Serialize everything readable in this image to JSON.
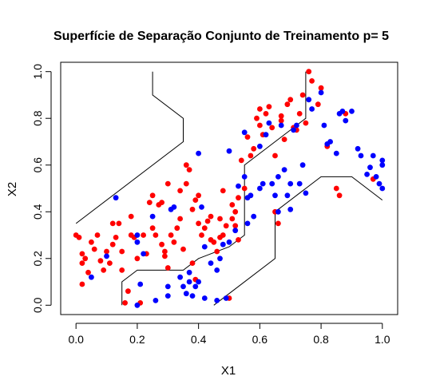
{
  "chart_data": {
    "type": "scatter",
    "title": "Superfície de Separação Conjunto de Treinamento p= 5",
    "xlabel": "X1",
    "ylabel": "X2",
    "xlim": [
      -0.05,
      1.05
    ],
    "ylim": [
      -0.04,
      1.04
    ],
    "x_ticks": [
      "0.0",
      "0.2",
      "0.4",
      "0.6",
      "0.8",
      "1.0"
    ],
    "y_ticks": [
      "0.0",
      "0.2",
      "0.4",
      "0.6",
      "0.8",
      "1.0"
    ],
    "grid": false,
    "legend": "none",
    "series": [
      {
        "color": "#ff0000",
        "points": [
          [
            0.0,
            0.3
          ],
          [
            0.01,
            0.29
          ],
          [
            0.02,
            0.22
          ],
          [
            0.02,
            0.18
          ],
          [
            0.02,
            0.09
          ],
          [
            0.03,
            0.2
          ],
          [
            0.04,
            0.14
          ],
          [
            0.05,
            0.27
          ],
          [
            0.06,
            0.24
          ],
          [
            0.07,
            0.3
          ],
          [
            0.08,
            0.19
          ],
          [
            0.09,
            0.15
          ],
          [
            0.1,
            0.23
          ],
          [
            0.11,
            0.18
          ],
          [
            0.12,
            0.35
          ],
          [
            0.12,
            0.26
          ],
          [
            0.13,
            0.29
          ],
          [
            0.14,
            0.35
          ],
          [
            0.15,
            0.23
          ],
          [
            0.15,
            0.15
          ],
          [
            0.16,
            0.01
          ],
          [
            0.17,
            0.06
          ],
          [
            0.18,
            0.38
          ],
          [
            0.18,
            0.3
          ],
          [
            0.19,
            0.29
          ],
          [
            0.2,
            0.2
          ],
          [
            0.21,
            0.01
          ],
          [
            0.22,
            0.3
          ],
          [
            0.23,
            0.22
          ],
          [
            0.24,
            0.44
          ],
          [
            0.25,
            0.47
          ],
          [
            0.25,
            0.33
          ],
          [
            0.26,
            0.3
          ],
          [
            0.27,
            0.43
          ],
          [
            0.28,
            0.26
          ],
          [
            0.28,
            0.44
          ],
          [
            0.29,
            0.21
          ],
          [
            0.29,
            0.23
          ],
          [
            0.3,
            0.16
          ],
          [
            0.3,
            0.52
          ],
          [
            0.31,
            0.3
          ],
          [
            0.32,
            0.27
          ],
          [
            0.33,
            0.33
          ],
          [
            0.34,
            0.49
          ],
          [
            0.34,
            0.37
          ],
          [
            0.35,
            0.24
          ],
          [
            0.36,
            0.6
          ],
          [
            0.36,
            0.52
          ],
          [
            0.37,
            0.58
          ],
          [
            0.38,
            0.41
          ],
          [
            0.38,
            0.18
          ],
          [
            0.39,
            0.11
          ],
          [
            0.39,
            0.45
          ],
          [
            0.4,
            0.47
          ],
          [
            0.4,
            0.35
          ],
          [
            0.41,
            0.3
          ],
          [
            0.42,
            0.33
          ],
          [
            0.43,
            0.36
          ],
          [
            0.44,
            0.38
          ],
          [
            0.44,
            0.28
          ],
          [
            0.45,
            0.27
          ],
          [
            0.46,
            0.23
          ],
          [
            0.47,
            0.29
          ],
          [
            0.47,
            0.37
          ],
          [
            0.48,
            0.49
          ],
          [
            0.48,
            0.3
          ],
          [
            0.49,
            0.34
          ],
          [
            0.5,
            0.03
          ],
          [
            0.51,
            0.43
          ],
          [
            0.51,
            0.37
          ],
          [
            0.52,
            0.4
          ],
          [
            0.52,
            0.34
          ],
          [
            0.53,
            0.46
          ],
          [
            0.53,
            0.28
          ],
          [
            0.54,
            0.62
          ],
          [
            0.55,
            0.5
          ],
          [
            0.56,
            0.72
          ],
          [
            0.57,
            0.64
          ],
          [
            0.58,
            0.67
          ],
          [
            0.59,
            0.8
          ],
          [
            0.6,
            0.77
          ],
          [
            0.6,
            0.84
          ],
          [
            0.61,
            0.73
          ],
          [
            0.62,
            0.82
          ],
          [
            0.63,
            0.85
          ],
          [
            0.64,
            0.76
          ],
          [
            0.65,
            0.4
          ],
          [
            0.65,
            0.64
          ],
          [
            0.66,
            0.35
          ],
          [
            0.67,
            0.79
          ],
          [
            0.67,
            0.81
          ],
          [
            0.68,
            0.71
          ],
          [
            0.69,
            0.86
          ],
          [
            0.7,
            0.88
          ],
          [
            0.71,
            0.76
          ],
          [
            0.72,
            0.75
          ],
          [
            0.73,
            0.82
          ],
          [
            0.74,
            0.9
          ],
          [
            0.75,
            0.78
          ],
          [
            0.76,
            1.0
          ],
          [
            0.77,
            0.96
          ],
          [
            0.79,
            0.86
          ],
          [
            0.8,
            0.93
          ],
          [
            0.82,
            0.68
          ],
          [
            0.85,
            0.5
          ],
          [
            0.86,
            0.47
          ],
          [
            0.88,
            0.82
          ],
          [
            0.97,
            0.54
          ]
        ]
      },
      {
        "color": "#0000ff",
        "points": [
          [
            0.05,
            0.12
          ],
          [
            0.1,
            0.21
          ],
          [
            0.13,
            0.46
          ],
          [
            0.2,
            0.3
          ],
          [
            0.2,
            0.27
          ],
          [
            0.2,
            0.0
          ],
          [
            0.21,
            0.09
          ],
          [
            0.22,
            0.22
          ],
          [
            0.25,
            0.38
          ],
          [
            0.26,
            0.02
          ],
          [
            0.3,
            0.08
          ],
          [
            0.3,
            0.04
          ],
          [
            0.31,
            0.41
          ],
          [
            0.32,
            0.42
          ],
          [
            0.34,
            0.12
          ],
          [
            0.35,
            0.08
          ],
          [
            0.36,
            0.05
          ],
          [
            0.37,
            0.1
          ],
          [
            0.37,
            0.14
          ],
          [
            0.38,
            0.04
          ],
          [
            0.39,
            0.08
          ],
          [
            0.4,
            0.1
          ],
          [
            0.4,
            0.65
          ],
          [
            0.41,
            0.42
          ],
          [
            0.42,
            0.25
          ],
          [
            0.42,
            0.03
          ],
          [
            0.44,
            0.18
          ],
          [
            0.46,
            0.02
          ],
          [
            0.46,
            0.15
          ],
          [
            0.47,
            0.2
          ],
          [
            0.48,
            0.26
          ],
          [
            0.49,
            0.03
          ],
          [
            0.5,
            0.27
          ],
          [
            0.5,
            0.66
          ],
          [
            0.52,
            0.32
          ],
          [
            0.53,
            0.51
          ],
          [
            0.55,
            0.55
          ],
          [
            0.55,
            0.74
          ],
          [
            0.56,
            0.35
          ],
          [
            0.56,
            0.46
          ],
          [
            0.57,
            0.47
          ],
          [
            0.58,
            0.38
          ],
          [
            0.6,
            0.5
          ],
          [
            0.6,
            0.68
          ],
          [
            0.61,
            0.52
          ],
          [
            0.62,
            0.73
          ],
          [
            0.63,
            0.78
          ],
          [
            0.64,
            0.52
          ],
          [
            0.65,
            0.47
          ],
          [
            0.66,
            0.55
          ],
          [
            0.66,
            0.4
          ],
          [
            0.67,
            0.77
          ],
          [
            0.68,
            0.58
          ],
          [
            0.69,
            0.47
          ],
          [
            0.7,
            0.52
          ],
          [
            0.7,
            0.41
          ],
          [
            0.71,
            0.75
          ],
          [
            0.72,
            0.77
          ],
          [
            0.73,
            0.52
          ],
          [
            0.74,
            0.6
          ],
          [
            0.75,
            0.48
          ],
          [
            0.76,
            0.88
          ],
          [
            0.77,
            0.84
          ],
          [
            0.8,
            0.91
          ],
          [
            0.81,
            0.77
          ],
          [
            0.82,
            0.69
          ],
          [
            0.83,
            0.7
          ],
          [
            0.85,
            0.65
          ],
          [
            0.86,
            0.82
          ],
          [
            0.87,
            0.83
          ],
          [
            0.88,
            0.79
          ],
          [
            0.9,
            0.83
          ],
          [
            0.92,
            0.67
          ],
          [
            0.93,
            0.64
          ],
          [
            0.95,
            0.56
          ],
          [
            0.96,
            0.59
          ],
          [
            0.97,
            0.64
          ],
          [
            0.98,
            0.55
          ],
          [
            0.99,
            0.52
          ],
          [
            1.0,
            0.6
          ],
          [
            1.0,
            0.62
          ],
          [
            1.0,
            0.5
          ]
        ]
      }
    ],
    "boundaries": [
      {
        "color": "#000000",
        "points": [
          [
            0.0,
            0.35
          ],
          [
            0.35,
            0.7
          ],
          [
            0.35,
            0.8
          ],
          [
            0.25,
            0.9
          ],
          [
            0.25,
            1.0
          ]
        ]
      },
      {
        "color": "#000000",
        "points": [
          [
            0.15,
            0.0
          ],
          [
            0.15,
            0.1
          ],
          [
            0.2,
            0.15
          ],
          [
            0.35,
            0.15
          ],
          [
            0.4,
            0.2
          ],
          [
            0.5,
            0.25
          ],
          [
            0.55,
            0.3
          ],
          [
            0.55,
            0.6
          ],
          [
            0.65,
            0.7
          ],
          [
            0.7,
            0.75
          ],
          [
            0.75,
            0.8
          ],
          [
            0.75,
            1.0
          ]
        ]
      },
      {
        "color": "#000000",
        "points": [
          [
            0.45,
            0.0
          ],
          [
            0.5,
            0.05
          ],
          [
            0.65,
            0.2
          ],
          [
            0.65,
            0.4
          ],
          [
            0.75,
            0.5
          ],
          [
            0.8,
            0.55
          ],
          [
            0.9,
            0.55
          ],
          [
            1.0,
            0.45
          ]
        ]
      }
    ]
  }
}
